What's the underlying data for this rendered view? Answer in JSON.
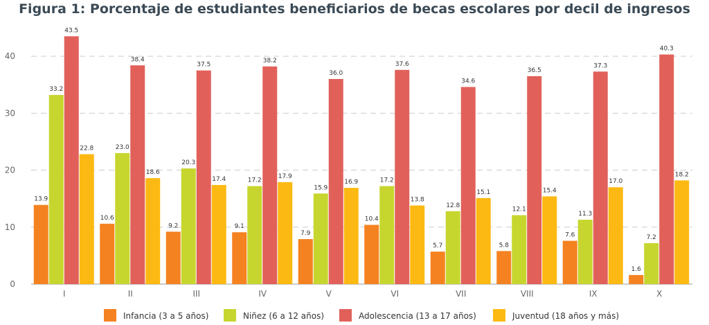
{
  "chart_data": {
    "type": "bar",
    "title": "Figura 1: Porcentaje de estudiantes beneficiarios de becas escolares por decil de ingresos",
    "xlabel": "",
    "ylabel": "",
    "categories": [
      "I",
      "II",
      "III",
      "IV",
      "V",
      "VI",
      "VII",
      "VIII",
      "IX",
      "X"
    ],
    "ylim": [
      0,
      45
    ],
    "yticks": [
      0,
      10,
      20,
      30,
      40
    ],
    "grid": true,
    "legend_position": "bottom",
    "series": [
      {
        "name": "Infancia (3 a 5 años)",
        "color": "#f58220",
        "values": [
          13.9,
          10.6,
          9.2,
          9.1,
          7.9,
          10.4,
          5.7,
          5.8,
          7.6,
          1.6
        ]
      },
      {
        "name": "Niñez (6 a 12 años)",
        "color": "#c7d62f",
        "values": [
          33.2,
          23.0,
          20.3,
          17.2,
          15.9,
          17.2,
          12.8,
          12.1,
          11.3,
          7.2
        ]
      },
      {
        "name": "Adolescencia (13 a 17 años)",
        "color": "#e1615a",
        "values": [
          43.5,
          38.4,
          37.5,
          38.2,
          36.0,
          37.6,
          34.6,
          36.5,
          37.3,
          40.3
        ]
      },
      {
        "name": "Juventud (18 años y más)",
        "color": "#fdb913",
        "values": [
          22.8,
          18.6,
          17.4,
          17.9,
          16.9,
          13.8,
          15.1,
          15.4,
          17.0,
          18.2
        ]
      }
    ]
  }
}
